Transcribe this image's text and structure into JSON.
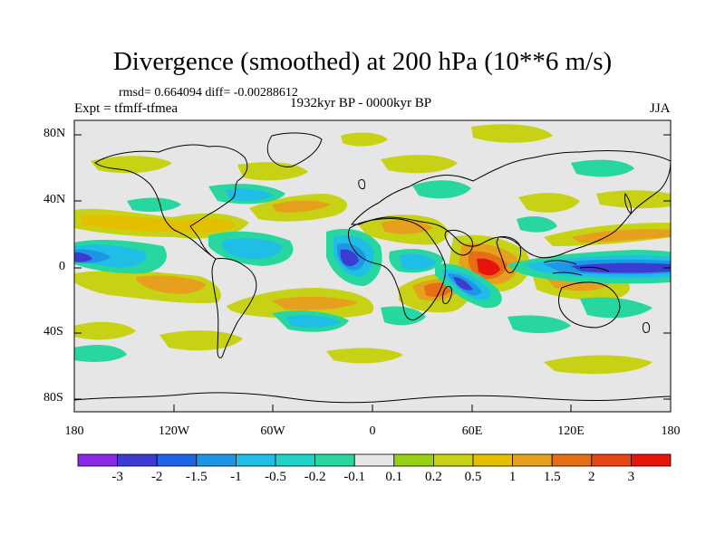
{
  "title": "Divergence (smoothed) at 200 hPa (10**6 m/s)",
  "stats": "rmsd= 0.664094 diff= -0.00288612",
  "experiment": "Expt = tfmff-tfmea",
  "period": "1932kyr BP - 0000kyr BP",
  "season": "JJA",
  "lat_labels": [
    "80N",
    "40N",
    "0",
    "40S",
    "80S"
  ],
  "lon_labels": [
    "180",
    "120W",
    "60W",
    "0",
    "60E",
    "120E",
    "180"
  ],
  "colorbar": {
    "labels": [
      "-3",
      "-2",
      "-1.5",
      "-1",
      "-0.5",
      "-0.2",
      "-0.1",
      "0.1",
      "0.2",
      "0.5",
      "1",
      "1.5",
      "2",
      "3"
    ],
    "colors": [
      "#8c28e6",
      "#3c3cd2",
      "#1e64e6",
      "#1e96e6",
      "#1ebee6",
      "#1ed2c8",
      "#28d7a0",
      "#e6e6e6",
      "#96d214",
      "#c8d214",
      "#e6be00",
      "#e6a01e",
      "#e66e14",
      "#e64614",
      "#e6140a"
    ]
  },
  "palette": {
    "ocean_bg": "#e6e6e6",
    "coast": "#000000",
    "neg_strong": "#3c3cd2",
    "neg_mid": "#1e96e6",
    "neg_light": "#1ebee6",
    "neg_weak": "#28d7a0",
    "pos_weak": "#96d214",
    "pos_light": "#c8d214",
    "pos_mid": "#e6be00",
    "pos_orange": "#e6a01e",
    "pos_strong": "#e66e14",
    "pos_max": "#e6140a"
  }
}
